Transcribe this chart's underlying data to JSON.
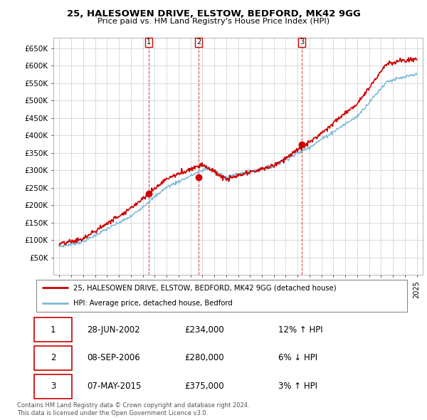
{
  "title": "25, HALESOWEN DRIVE, ELSTOW, BEDFORD, MK42 9GG",
  "subtitle": "Price paid vs. HM Land Registry's House Price Index (HPI)",
  "ylim": [
    0,
    680000
  ],
  "yticks": [
    50000,
    100000,
    150000,
    200000,
    250000,
    300000,
    350000,
    400000,
    450000,
    500000,
    550000,
    600000,
    650000
  ],
  "ytick_labels": [
    "£50K",
    "£100K",
    "£150K",
    "£200K",
    "£250K",
    "£300K",
    "£350K",
    "£400K",
    "£450K",
    "£500K",
    "£550K",
    "£600K",
    "£650K"
  ],
  "hpi_color": "#7ab8d4",
  "price_color": "#cc0000",
  "transactions": [
    {
      "date_num": 2002.49,
      "price": 234000,
      "label": "1"
    },
    {
      "date_num": 2006.69,
      "price": 280000,
      "label": "2"
    },
    {
      "date_num": 2015.35,
      "price": 375000,
      "label": "3"
    }
  ],
  "legend_label_red": "25, HALESOWEN DRIVE, ELSTOW, BEDFORD, MK42 9GG (detached house)",
  "legend_label_blue": "HPI: Average price, detached house, Bedford",
  "footer": "Contains HM Land Registry data © Crown copyright and database right 2024.\nThis data is licensed under the Open Government Licence v3.0.",
  "table_rows": [
    [
      "1",
      "28-JUN-2002",
      "£234,000",
      "12% ↑ HPI"
    ],
    [
      "2",
      "08-SEP-2006",
      "£280,000",
      "6% ↓ HPI"
    ],
    [
      "3",
      "07-MAY-2015",
      "£375,000",
      "3% ↑ HPI"
    ]
  ]
}
